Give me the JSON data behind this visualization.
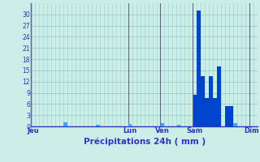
{
  "title": "",
  "xlabel": "Précipitations 24h ( mm )",
  "background_color": "#cceee8",
  "bar_color_dark": "#0044cc",
  "bar_color_light": "#33aaff",
  "grid_color": "#99cccc",
  "axis_color": "#3333bb",
  "vline_color": "#666688",
  "ylim": [
    0,
    33
  ],
  "yticks": [
    0,
    3,
    6,
    9,
    12,
    15,
    18,
    21,
    24,
    27,
    30
  ],
  "n_bars": 56,
  "day_labels": [
    "Jeu",
    "Lun",
    "Ven",
    "Sam",
    "Dim"
  ],
  "day_tick_positions": [
    0,
    24,
    32,
    40,
    54
  ],
  "vline_positions": [
    0,
    24,
    32,
    40,
    54
  ],
  "values": [
    0,
    0,
    0,
    0,
    0,
    0,
    0,
    0,
    1.0,
    0,
    0,
    0,
    0,
    0,
    0,
    0,
    0.4,
    0,
    0,
    0,
    0,
    0,
    0,
    0,
    0.6,
    0,
    0,
    0,
    0,
    0,
    0,
    0,
    0.8,
    0,
    0,
    0,
    0.4,
    0,
    0,
    0,
    8.5,
    31.0,
    13.5,
    7.5,
    13.5,
    7.5,
    16.0,
    0,
    5.5,
    5.5,
    0.8,
    0,
    0,
    0,
    0,
    0
  ]
}
